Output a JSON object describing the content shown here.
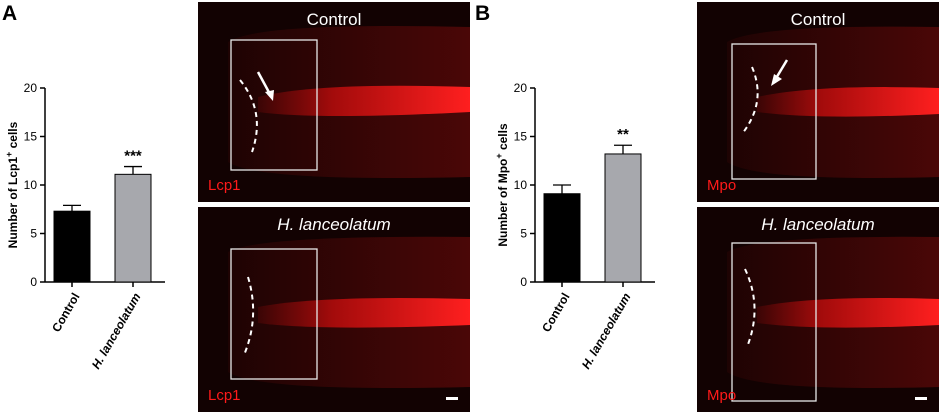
{
  "panels": [
    {
      "letter": "A",
      "ylabel_prefix": "Number of Lcp1",
      "ylabel_sup": "+",
      "ylabel_suffix": " cells",
      "top_image": {
        "title": "Control",
        "channel": "Lcp1"
      },
      "bottom_image": {
        "title": "H. lanceolatum",
        "channel": "Lcp1"
      }
    },
    {
      "letter": "B",
      "ylabel_prefix": "Number of Mpo",
      "ylabel_sup": "+",
      "ylabel_suffix": " cells",
      "top_image": {
        "title": "Control",
        "channel": "Mpo"
      },
      "bottom_image": {
        "title": "H. lanceolatum",
        "channel": "Mpo"
      }
    }
  ],
  "chart_data": [
    {
      "type": "bar",
      "categories": [
        "Control",
        "H. lanceolatum"
      ],
      "values": [
        7.3,
        11.1
      ],
      "errors": [
        0.6,
        0.8
      ],
      "ylim": [
        0,
        20
      ],
      "yticks": [
        0,
        5,
        10,
        15,
        20
      ],
      "bar_colors": [
        "#000000",
        "#a7a8ad"
      ],
      "significance": [
        "",
        "***"
      ]
    },
    {
      "type": "bar",
      "categories": [
        "Control",
        "H. lanceolatum"
      ],
      "values": [
        9.1,
        13.2
      ],
      "errors": [
        0.9,
        0.9
      ],
      "ylim": [
        0,
        20
      ],
      "yticks": [
        0,
        5,
        10,
        15,
        20
      ],
      "bar_colors": [
        "#000000",
        "#a7a8ad"
      ],
      "significance": [
        "",
        "**"
      ]
    }
  ]
}
